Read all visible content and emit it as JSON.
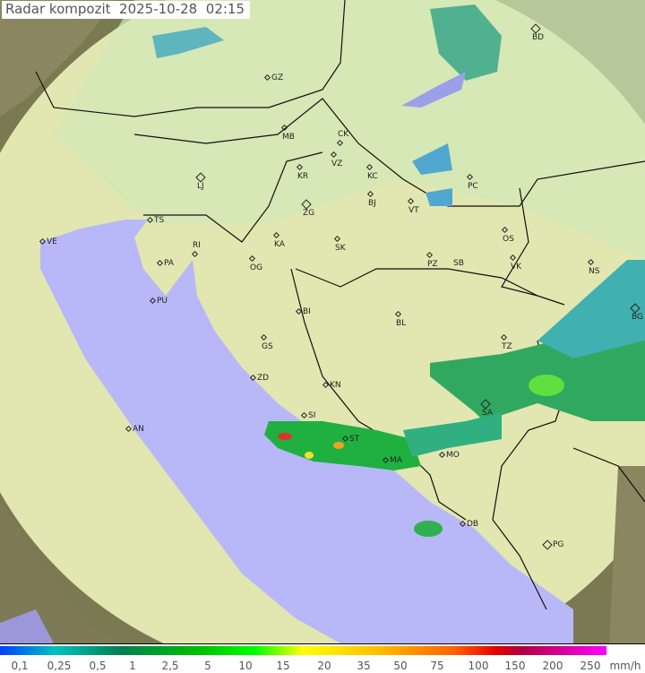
{
  "header": {
    "title": "Radar kompozit",
    "date": "2025-10-28",
    "time": "02:15"
  },
  "cities": [
    "GZ",
    "BD",
    "MB",
    "CK",
    "VZ",
    "KR",
    "KC",
    "LJ",
    "ZG",
    "BJ",
    "VT",
    "PC",
    "TS",
    "VE",
    "RI",
    "KA",
    "SK",
    "OS",
    "PA",
    "OG",
    "PZ",
    "SB",
    "VK",
    "NS",
    "PU",
    "BI",
    "BL",
    "BG",
    "GS",
    "TZ",
    "ZD",
    "KN",
    "AN",
    "SI",
    "SA",
    "ST",
    "MA",
    "MO",
    "DB",
    "PG"
  ],
  "legend": {
    "ticks": [
      "0,1",
      "0,25",
      "0,5",
      "1",
      "2,5",
      "5",
      "10",
      "15",
      "20",
      "35",
      "50",
      "75",
      "100",
      "150",
      "200",
      "250"
    ],
    "unit": "mm/h"
  },
  "colors": {
    "sea": "#b8b8f8",
    "land": "#dde8b0",
    "outside_range": "#7a7a52"
  }
}
